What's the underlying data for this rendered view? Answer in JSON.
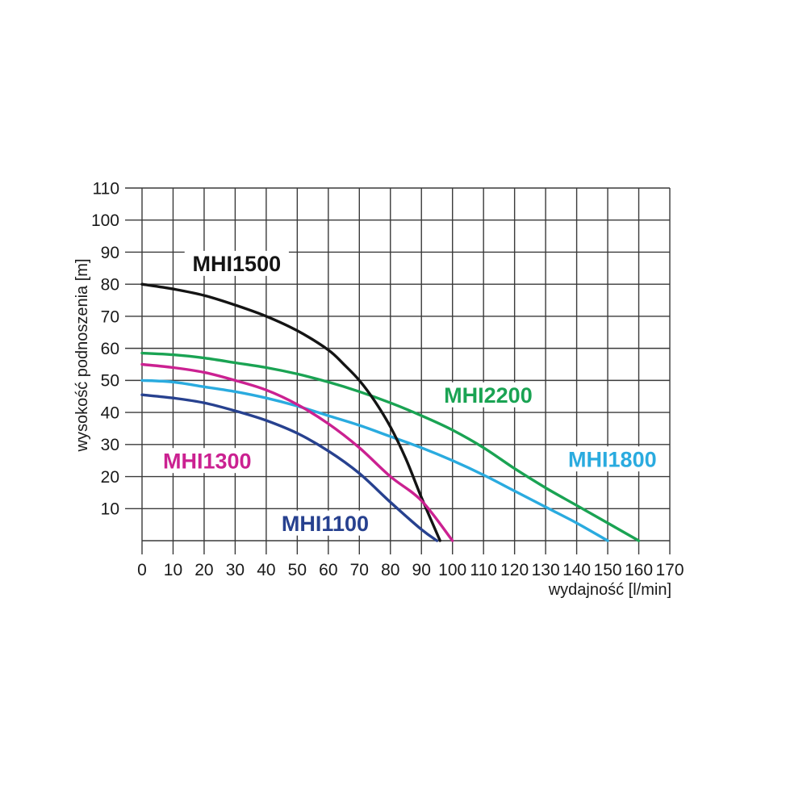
{
  "page": {
    "background": "#ffffff",
    "description": "Pump performance curves MHI series"
  },
  "chart_data": {
    "type": "line",
    "title": "",
    "xlabel": "wydajność [l/min]",
    "ylabel": "wysokość podnoszenia [m]",
    "xlim": [
      0,
      170
    ],
    "ylim": [
      0,
      110
    ],
    "x_ticks": [
      0,
      10,
      20,
      30,
      40,
      50,
      60,
      70,
      80,
      90,
      100,
      110,
      120,
      130,
      140,
      150,
      160,
      170
    ],
    "y_ticks": [
      10,
      20,
      30,
      40,
      50,
      60,
      70,
      80,
      90,
      100,
      110
    ],
    "grid": true,
    "grid_color": "#3a3a3a",
    "axis_text_color": "#1a1a1a",
    "legend_position": "inline-labels",
    "series": [
      {
        "name": "MHI2200",
        "color": "#1aa353",
        "x": [
          0,
          10,
          20,
          30,
          40,
          50,
          60,
          70,
          80,
          90,
          100,
          110,
          120,
          130,
          140,
          150,
          160
        ],
        "y": [
          58.5,
          58,
          57,
          55.5,
          54,
          52,
          49.5,
          46.5,
          43,
          39,
          34.5,
          29,
          22.5,
          16.5,
          11,
          5.5,
          0
        ],
        "label_pos": {
          "x": 111.5,
          "y": 45.5
        }
      },
      {
        "name": "MHI1800",
        "color": "#2aabdf",
        "x": [
          0,
          10,
          20,
          30,
          40,
          50,
          60,
          70,
          80,
          90,
          100,
          110,
          120,
          130,
          140,
          150
        ],
        "y": [
          50,
          49.5,
          48,
          46.5,
          44.5,
          42,
          39,
          36,
          32.5,
          29,
          25,
          20.5,
          15.5,
          10.5,
          5.5,
          0
        ],
        "label_pos": {
          "x": 151.5,
          "y": 25.5
        }
      },
      {
        "name": "MHI1500",
        "color": "#141414",
        "x": [
          0,
          10,
          20,
          30,
          40,
          50,
          60,
          65,
          70,
          75,
          80,
          85,
          90,
          96
        ],
        "y": [
          80,
          78.5,
          76.5,
          73.5,
          70,
          65.5,
          59.5,
          55,
          50,
          43.5,
          35.5,
          25.5,
          13.5,
          0
        ],
        "label_pos": {
          "x": 30.5,
          "y": 86.5
        }
      },
      {
        "name": "MHI1100",
        "color": "#27418f",
        "x": [
          0,
          10,
          20,
          30,
          40,
          50,
          60,
          70,
          80,
          90,
          95
        ],
        "y": [
          45.5,
          44.5,
          43,
          40.5,
          37.5,
          33.5,
          28,
          21,
          12,
          3.5,
          0
        ],
        "label_pos": {
          "x": 59,
          "y": 5.5
        }
      },
      {
        "name": "MHI1300",
        "color": "#cb2191",
        "x": [
          0,
          10,
          20,
          30,
          40,
          50,
          60,
          70,
          80,
          90,
          100
        ],
        "y": [
          55,
          54,
          52.5,
          50,
          47,
          42.5,
          36.5,
          29,
          20,
          12.5,
          0
        ],
        "label_pos": {
          "x": 21,
          "y": 25
        }
      }
    ]
  }
}
